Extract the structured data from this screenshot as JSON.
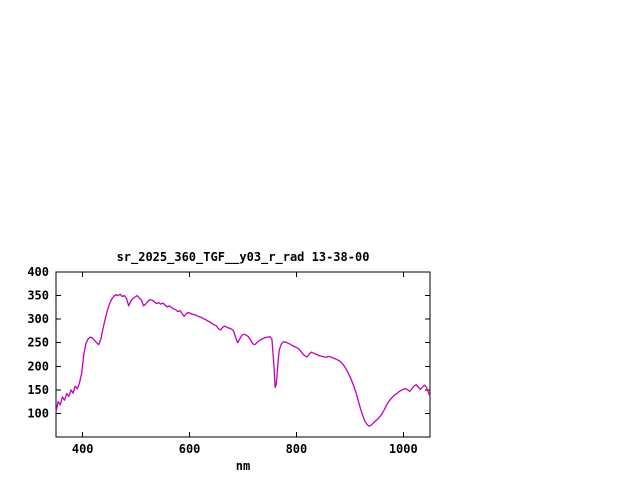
{
  "page": {
    "background": "#ffffff"
  },
  "chart_data": {
    "type": "line",
    "title": "sr_2025_360_TGF__y03_r_rad 13-38-00",
    "xlabel": "nm",
    "ylabel": "",
    "xlim": [
      350,
      1050
    ],
    "ylim": [
      50,
      400
    ],
    "x_ticks": [
      400,
      600,
      800,
      1000
    ],
    "y_ticks": [
      100,
      150,
      200,
      250,
      300,
      350,
      400
    ],
    "grid": false,
    "legend": "none",
    "line_color": "#c000c0",
    "border_color": "#000000",
    "series": [
      {
        "points": [
          [
            350,
            103
          ],
          [
            354,
            125
          ],
          [
            358,
            118
          ],
          [
            362,
            135
          ],
          [
            366,
            128
          ],
          [
            370,
            142
          ],
          [
            374,
            136
          ],
          [
            378,
            150
          ],
          [
            382,
            143
          ],
          [
            386,
            158
          ],
          [
            390,
            152
          ],
          [
            394,
            165
          ],
          [
            398,
            185
          ],
          [
            402,
            225
          ],
          [
            406,
            248
          ],
          [
            410,
            258
          ],
          [
            414,
            262
          ],
          [
            418,
            260
          ],
          [
            422,
            255
          ],
          [
            426,
            250
          ],
          [
            430,
            246
          ],
          [
            434,
            258
          ],
          [
            438,
            280
          ],
          [
            442,
            300
          ],
          [
            446,
            318
          ],
          [
            450,
            332
          ],
          [
            454,
            342
          ],
          [
            458,
            348
          ],
          [
            462,
            352
          ],
          [
            466,
            350
          ],
          [
            470,
            353
          ],
          [
            474,
            348
          ],
          [
            478,
            350
          ],
          [
            482,
            344
          ],
          [
            486,
            328
          ],
          [
            490,
            338
          ],
          [
            494,
            344
          ],
          [
            498,
            347
          ],
          [
            502,
            350
          ],
          [
            506,
            345
          ],
          [
            510,
            340
          ],
          [
            514,
            328
          ],
          [
            518,
            332
          ],
          [
            522,
            338
          ],
          [
            526,
            341
          ],
          [
            530,
            340
          ],
          [
            534,
            337
          ],
          [
            538,
            333
          ],
          [
            542,
            335
          ],
          [
            546,
            332
          ],
          [
            550,
            334
          ],
          [
            554,
            330
          ],
          [
            558,
            326
          ],
          [
            562,
            328
          ],
          [
            566,
            325
          ],
          [
            570,
            322
          ],
          [
            574,
            320
          ],
          [
            578,
            316
          ],
          [
            582,
            318
          ],
          [
            586,
            312
          ],
          [
            590,
            306
          ],
          [
            594,
            312
          ],
          [
            598,
            314
          ],
          [
            602,
            312
          ],
          [
            606,
            310
          ],
          [
            610,
            309
          ],
          [
            614,
            307
          ],
          [
            618,
            305
          ],
          [
            622,
            304
          ],
          [
            626,
            301
          ],
          [
            630,
            299
          ],
          [
            634,
            296
          ],
          [
            638,
            294
          ],
          [
            642,
            291
          ],
          [
            646,
            288
          ],
          [
            650,
            286
          ],
          [
            654,
            280
          ],
          [
            658,
            277
          ],
          [
            662,
            283
          ],
          [
            666,
            285
          ],
          [
            670,
            283
          ],
          [
            674,
            281
          ],
          [
            678,
            279
          ],
          [
            682,
            276
          ],
          [
            686,
            262
          ],
          [
            690,
            250
          ],
          [
            694,
            258
          ],
          [
            698,
            266
          ],
          [
            702,
            268
          ],
          [
            706,
            266
          ],
          [
            710,
            263
          ],
          [
            714,
            256
          ],
          [
            718,
            248
          ],
          [
            722,
            246
          ],
          [
            726,
            250
          ],
          [
            730,
            254
          ],
          [
            734,
            257
          ],
          [
            738,
            259
          ],
          [
            742,
            261
          ],
          [
            746,
            262
          ],
          [
            750,
            263
          ],
          [
            754,
            258
          ],
          [
            758,
            200
          ],
          [
            760,
            155
          ],
          [
            762,
            160
          ],
          [
            764,
            185
          ],
          [
            766,
            215
          ],
          [
            768,
            235
          ],
          [
            772,
            248
          ],
          [
            776,
            252
          ],
          [
            780,
            251
          ],
          [
            784,
            249
          ],
          [
            788,
            247
          ],
          [
            792,
            244
          ],
          [
            796,
            242
          ],
          [
            800,
            240
          ],
          [
            804,
            237
          ],
          [
            808,
            232
          ],
          [
            812,
            226
          ],
          [
            816,
            222
          ],
          [
            820,
            220
          ],
          [
            824,
            226
          ],
          [
            828,
            230
          ],
          [
            832,
            228
          ],
          [
            836,
            226
          ],
          [
            840,
            224
          ],
          [
            844,
            222
          ],
          [
            848,
            221
          ],
          [
            852,
            220
          ],
          [
            856,
            219
          ],
          [
            860,
            221
          ],
          [
            864,
            220
          ],
          [
            868,
            218
          ],
          [
            872,
            216
          ],
          [
            876,
            214
          ],
          [
            880,
            212
          ],
          [
            884,
            208
          ],
          [
            888,
            203
          ],
          [
            892,
            196
          ],
          [
            896,
            188
          ],
          [
            900,
            178
          ],
          [
            904,
            168
          ],
          [
            908,
            156
          ],
          [
            912,
            142
          ],
          [
            916,
            126
          ],
          [
            920,
            110
          ],
          [
            924,
            96
          ],
          [
            928,
            84
          ],
          [
            932,
            77
          ],
          [
            936,
            73
          ],
          [
            940,
            75
          ],
          [
            944,
            80
          ],
          [
            948,
            84
          ],
          [
            952,
            88
          ],
          [
            956,
            93
          ],
          [
            960,
            99
          ],
          [
            964,
            107
          ],
          [
            968,
            116
          ],
          [
            972,
            124
          ],
          [
            976,
            130
          ],
          [
            980,
            135
          ],
          [
            984,
            139
          ],
          [
            988,
            142
          ],
          [
            992,
            146
          ],
          [
            996,
            149
          ],
          [
            1000,
            151
          ],
          [
            1004,
            153
          ],
          [
            1008,
            150
          ],
          [
            1012,
            147
          ],
          [
            1016,
            152
          ],
          [
            1020,
            158
          ],
          [
            1024,
            161
          ],
          [
            1028,
            156
          ],
          [
            1032,
            151
          ],
          [
            1036,
            156
          ],
          [
            1040,
            160
          ],
          [
            1044,
            154
          ],
          [
            1048,
            142
          ],
          [
            1050,
            136
          ]
        ]
      }
    ]
  }
}
